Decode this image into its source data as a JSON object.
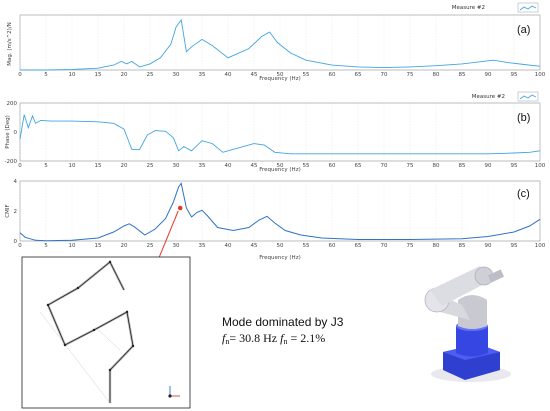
{
  "chart_data": [
    {
      "type": "line",
      "panel_label": "(a)",
      "ylabel": "Mag. (m/s^2)/N",
      "xlabel": "Frequency (Hz)",
      "xlim": [
        0,
        100
      ],
      "xticks": [
        "0",
        "5",
        "10",
        "15",
        "20",
        "25",
        "30",
        "35",
        "40",
        "45",
        "50",
        "55",
        "60",
        "65",
        "70",
        "75",
        "80",
        "85",
        "90",
        "95",
        "100"
      ],
      "yticks": [],
      "legend": "Measure #2",
      "legend_position": "top-right",
      "series": [
        {
          "color": "#41a5e1",
          "x": [
            0,
            5,
            10,
            15,
            18,
            19.5,
            20.5,
            21.5,
            23,
            25,
            27,
            29,
            30,
            31,
            32,
            33,
            35,
            37,
            40,
            44,
            46.5,
            48,
            49.5,
            52,
            55,
            60,
            65,
            70,
            75,
            80,
            85,
            88,
            91,
            94,
            97,
            100
          ],
          "y": [
            0.0,
            0.0,
            0.01,
            0.03,
            0.08,
            0.14,
            0.1,
            0.14,
            0.05,
            0.1,
            0.2,
            0.42,
            0.7,
            0.82,
            0.3,
            0.38,
            0.5,
            0.4,
            0.2,
            0.35,
            0.55,
            0.62,
            0.45,
            0.28,
            0.16,
            0.08,
            0.05,
            0.04,
            0.05,
            0.07,
            0.1,
            0.13,
            0.16,
            0.12,
            0.09,
            0.06
          ]
        }
      ]
    },
    {
      "type": "line",
      "panel_label": "(b)",
      "ylabel": "Phase (Deg)",
      "xlabel": "Frequency (Hz)",
      "xlim": [
        0,
        100
      ],
      "ylim": [
        -200,
        200
      ],
      "xticks": [
        "0",
        "5",
        "10",
        "15",
        "20",
        "25",
        "30",
        "35",
        "40",
        "45",
        "50",
        "55",
        "60",
        "65",
        "70",
        "75",
        "80",
        "85",
        "90",
        "95",
        "100"
      ],
      "yticks": [
        "200",
        "0",
        "-200"
      ],
      "legend": "Measure #2",
      "legend_position": "top-right",
      "series": [
        {
          "color": "#41a5e1",
          "x": [
            0,
            0.8,
            1.6,
            2.4,
            3,
            4,
            6,
            10,
            15,
            18,
            20,
            21.5,
            23,
            24.5,
            26,
            28,
            29.5,
            30.5,
            31.5,
            33,
            35,
            37,
            39,
            42,
            45,
            47,
            49,
            52,
            55,
            60,
            70,
            80,
            90,
            95,
            98,
            100
          ],
          "y": [
            -50,
            120,
            30,
            110,
            60,
            80,
            75,
            75,
            70,
            60,
            20,
            -120,
            -120,
            -20,
            10,
            5,
            -40,
            -130,
            -100,
            -130,
            -60,
            -80,
            -140,
            -110,
            -80,
            -90,
            -140,
            -150,
            -150,
            -150,
            -150,
            -150,
            -150,
            -145,
            -140,
            -130
          ]
        }
      ]
    },
    {
      "type": "line",
      "panel_label": "(c)",
      "ylabel": "CMIF",
      "xlabel": "Frequency (Hz)",
      "xlim": [
        0,
        100
      ],
      "ylim": [
        0,
        4
      ],
      "xticks": [
        "0",
        "5",
        "10",
        "15",
        "20",
        "25",
        "30",
        "35",
        "40",
        "45",
        "50",
        "55",
        "60",
        "65",
        "70",
        "75",
        "80",
        "85",
        "90",
        "95",
        "100"
      ],
      "yticks": [
        "4",
        "2",
        "0"
      ],
      "series": [
        {
          "color": "#2e73c4",
          "x": [
            0,
            1,
            3,
            5,
            10,
            15,
            18,
            20,
            21,
            22,
            24,
            26,
            28,
            29.5,
            30.5,
            31,
            32,
            33,
            34,
            35,
            36,
            38,
            41,
            44,
            46,
            47.5,
            49,
            51,
            54,
            58,
            65,
            75,
            85,
            90,
            95,
            98,
            100
          ],
          "y": [
            0.55,
            0.25,
            0.05,
            0.02,
            0.05,
            0.2,
            0.6,
            1.0,
            1.15,
            0.95,
            0.4,
            0.8,
            1.5,
            2.6,
            3.6,
            3.85,
            2.2,
            1.6,
            1.9,
            2.05,
            1.7,
            0.9,
            0.7,
            0.9,
            1.4,
            1.65,
            1.2,
            0.7,
            0.4,
            0.2,
            0.1,
            0.1,
            0.15,
            0.3,
            0.6,
            1.0,
            1.45
          ]
        }
      ]
    }
  ],
  "annotation": {
    "mode_title": "Mode dominated  by J3",
    "fn_label": "f",
    "fn_subscript": "n",
    "fn_value": "= 30.8 Hz",
    "zeta_label": "f",
    "zeta_subscript": "n",
    "zeta_value": "  = 2.1%"
  },
  "colors": {
    "accent_line": "#41a5e1",
    "cmif_line": "#2e73c4",
    "arrow": "#e53a2a",
    "marker": "#e53a2a"
  }
}
